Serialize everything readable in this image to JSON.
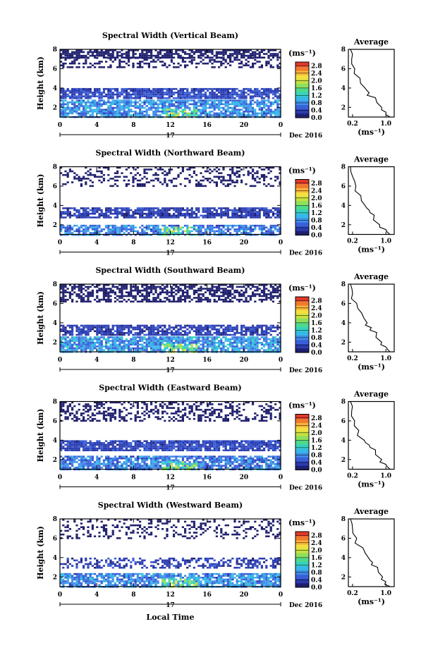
{
  "figure": {
    "panels": [
      {
        "title": "Spectral Width (Vertical Beam)"
      },
      {
        "title": "Spectral Width (Northward Beam)"
      },
      {
        "title": "Spectral Width (Southward Beam)"
      },
      {
        "title": "Spectral Width (Eastward Beam)"
      },
      {
        "title": "Spectral Width (Westward Beam)"
      }
    ],
    "ylabel": "Height (km)",
    "xlabel": "Local Time",
    "day_label": "17",
    "date_label": "Dec 2016",
    "colorbar_unit": "(ms⁻¹)",
    "average_title": "Average",
    "average_xunit": "(ms⁻¹)",
    "colorscale": [
      "#1f1f6e",
      "#2b3cb0",
      "#3a5fd8",
      "#3f8fe8",
      "#36b8e8",
      "#35d3c0",
      "#4fd98a",
      "#8ee05c",
      "#c8e040",
      "#f2e040",
      "#f9b53a",
      "#f07a30",
      "#e03a2a"
    ]
  },
  "chart_data": [
    {
      "type": "heatmap",
      "title": "Spectral Width (Vertical Beam)",
      "ylabel": "Height (km)",
      "xlim": [
        0,
        24
      ],
      "ylim": [
        1,
        8
      ],
      "xticks": [
        "0",
        "4",
        "8",
        "12",
        "16",
        "20",
        "0"
      ],
      "yticks": [
        "2",
        "4",
        "6",
        "8"
      ],
      "colorbar": {
        "ticks": [
          "0.0",
          "0.4",
          "0.8",
          "1.2",
          "1.6",
          "2.0",
          "2.4",
          "2.8"
        ],
        "range": [
          0.0,
          3.0
        ]
      },
      "layers": [
        {
          "h": [
            7.2,
            8.0
          ],
          "value": 0.15,
          "coverage": 0.7
        },
        {
          "h": [
            6.2,
            7.2
          ],
          "value": 0.15,
          "coverage": 0.35
        },
        {
          "h": [
            3.0,
            4.0
          ],
          "value": 0.4,
          "coverage": 0.85
        },
        {
          "h": [
            1.0,
            2.8
          ],
          "value": 0.8,
          "coverage": 0.8
        }
      ],
      "average": {
        "xticks": [
          "0.2",
          "1.0"
        ],
        "xlim": [
          0.1,
          1.2
        ],
        "ylim": [
          1,
          8
        ],
        "yticks": [
          "2",
          "4",
          "6",
          "8"
        ],
        "profile": [
          [
            0.15,
            8
          ],
          [
            0.18,
            7
          ],
          [
            0.25,
            6
          ],
          [
            0.38,
            5
          ],
          [
            0.5,
            4
          ],
          [
            0.6,
            3.5
          ],
          [
            0.75,
            3
          ],
          [
            0.9,
            2
          ],
          [
            1.0,
            1.5
          ],
          [
            1.1,
            1
          ]
        ]
      }
    },
    {
      "type": "heatmap",
      "title": "Spectral Width (Northward Beam)",
      "ylabel": "Height (km)",
      "xlim": [
        0,
        24
      ],
      "ylim": [
        1,
        8
      ],
      "xticks": [
        "0",
        "4",
        "8",
        "12",
        "16",
        "20",
        "0"
      ],
      "yticks": [
        "2",
        "4",
        "6",
        "8"
      ],
      "colorbar": {
        "ticks": [
          "0.0",
          "0.4",
          "0.8",
          "1.2",
          "1.6",
          "2.0",
          "2.4",
          "2.8"
        ],
        "range": [
          0.0,
          3.0
        ]
      },
      "layers": [
        {
          "h": [
            6.0,
            8.0
          ],
          "value": 0.15,
          "coverage": 0.3
        },
        {
          "h": [
            2.8,
            3.8
          ],
          "value": 0.35,
          "coverage": 0.75
        },
        {
          "h": [
            1.0,
            2.0
          ],
          "value": 0.7,
          "coverage": 0.75
        }
      ],
      "average": {
        "xticks": [
          "0.2",
          "1.0"
        ],
        "xlim": [
          0.1,
          1.2
        ],
        "ylim": [
          1,
          8
        ],
        "yticks": [
          "2",
          "4",
          "6",
          "8"
        ],
        "profile": [
          [
            0.15,
            8
          ],
          [
            0.2,
            7
          ],
          [
            0.28,
            6
          ],
          [
            0.4,
            5
          ],
          [
            0.5,
            4
          ],
          [
            0.6,
            3.5
          ],
          [
            0.72,
            3
          ],
          [
            0.85,
            2
          ],
          [
            1.0,
            1.5
          ],
          [
            1.1,
            1
          ]
        ]
      }
    },
    {
      "type": "heatmap",
      "title": "Spectral Width (Southward Beam)",
      "ylabel": "Height (km)",
      "xlim": [
        0,
        24
      ],
      "ylim": [
        1,
        8
      ],
      "xticks": [
        "0",
        "4",
        "8",
        "12",
        "16",
        "20",
        "0"
      ],
      "yticks": [
        "2",
        "4",
        "6",
        "8"
      ],
      "colorbar": {
        "ticks": [
          "0.0",
          "0.4",
          "0.8",
          "1.2",
          "1.6",
          "2.0",
          "2.4",
          "2.8"
        ],
        "range": [
          0.0,
          3.0
        ]
      },
      "layers": [
        {
          "h": [
            6.2,
            8.0
          ],
          "value": 0.15,
          "coverage": 0.6
        },
        {
          "h": [
            2.8,
            3.8
          ],
          "value": 0.35,
          "coverage": 0.75
        },
        {
          "h": [
            1.0,
            2.6
          ],
          "value": 0.85,
          "coverage": 0.85
        }
      ],
      "average": {
        "xticks": [
          "0.2",
          "1.0"
        ],
        "xlim": [
          0.1,
          1.2
        ],
        "ylim": [
          1,
          8
        ],
        "yticks": [
          "2",
          "4",
          "6",
          "8"
        ],
        "profile": [
          [
            0.15,
            8
          ],
          [
            0.2,
            7
          ],
          [
            0.3,
            6
          ],
          [
            0.42,
            5
          ],
          [
            0.55,
            4
          ],
          [
            0.65,
            3.5
          ],
          [
            0.78,
            3
          ],
          [
            0.9,
            2
          ],
          [
            1.0,
            1.5
          ],
          [
            1.1,
            1
          ]
        ]
      }
    },
    {
      "type": "heatmap",
      "title": "Spectral Width (Eastward Beam)",
      "ylabel": "Height (km)",
      "xlim": [
        0,
        24
      ],
      "ylim": [
        1,
        8
      ],
      "xticks": [
        "0",
        "4",
        "8",
        "12",
        "16",
        "20",
        "0"
      ],
      "yticks": [
        "2",
        "4",
        "6",
        "8"
      ],
      "colorbar": {
        "ticks": [
          "0.0",
          "0.4",
          "0.8",
          "1.2",
          "1.6",
          "2.0",
          "2.4",
          "2.8"
        ],
        "range": [
          0.0,
          3.0
        ]
      },
      "layers": [
        {
          "h": [
            6.0,
            8.0
          ],
          "value": 0.15,
          "coverage": 0.4
        },
        {
          "h": [
            3.0,
            4.0
          ],
          "value": 0.4,
          "coverage": 0.85
        },
        {
          "h": [
            1.0,
            2.4
          ],
          "value": 0.7,
          "coverage": 0.8
        }
      ],
      "average": {
        "xticks": [
          "0.2",
          "1.0"
        ],
        "xlim": [
          0.1,
          1.2
        ],
        "ylim": [
          1,
          8
        ],
        "yticks": [
          "2",
          "4",
          "6",
          "8"
        ],
        "profile": [
          [
            0.15,
            8
          ],
          [
            0.18,
            7
          ],
          [
            0.25,
            6
          ],
          [
            0.35,
            5
          ],
          [
            0.48,
            4
          ],
          [
            0.6,
            3.5
          ],
          [
            0.75,
            3
          ],
          [
            0.9,
            2
          ],
          [
            1.0,
            1.5
          ],
          [
            1.1,
            1
          ]
        ]
      }
    },
    {
      "type": "heatmap",
      "title": "Spectral Width (Westward Beam)",
      "ylabel": "Height (km)",
      "xlim": [
        0,
        24
      ],
      "ylim": [
        1,
        8
      ],
      "xticks": [
        "0",
        "4",
        "8",
        "12",
        "16",
        "20",
        "0"
      ],
      "yticks": [
        "2",
        "4",
        "6",
        "8"
      ],
      "colorbar": {
        "ticks": [
          "0.0",
          "0.4",
          "0.8",
          "1.2",
          "1.6",
          "2.0",
          "2.4",
          "2.8"
        ],
        "range": [
          0.0,
          3.0
        ]
      },
      "layers": [
        {
          "h": [
            6.0,
            8.0
          ],
          "value": 0.15,
          "coverage": 0.25
        },
        {
          "h": [
            3.0,
            4.0
          ],
          "value": 0.35,
          "coverage": 0.5
        },
        {
          "h": [
            1.0,
            2.4
          ],
          "value": 0.8,
          "coverage": 0.8
        }
      ],
      "average": {
        "xticks": [
          "0.2",
          "1.0"
        ],
        "xlim": [
          0.1,
          1.2
        ],
        "ylim": [
          1,
          8
        ],
        "yticks": [
          "2",
          "4",
          "6",
          "8"
        ],
        "profile": [
          [
            0.15,
            8
          ],
          [
            0.2,
            7
          ],
          [
            0.3,
            6
          ],
          [
            0.45,
            5
          ],
          [
            0.58,
            4
          ],
          [
            0.68,
            3.5
          ],
          [
            0.8,
            3
          ],
          [
            0.92,
            2
          ],
          [
            1.0,
            1.5
          ],
          [
            1.1,
            1
          ]
        ]
      }
    }
  ]
}
